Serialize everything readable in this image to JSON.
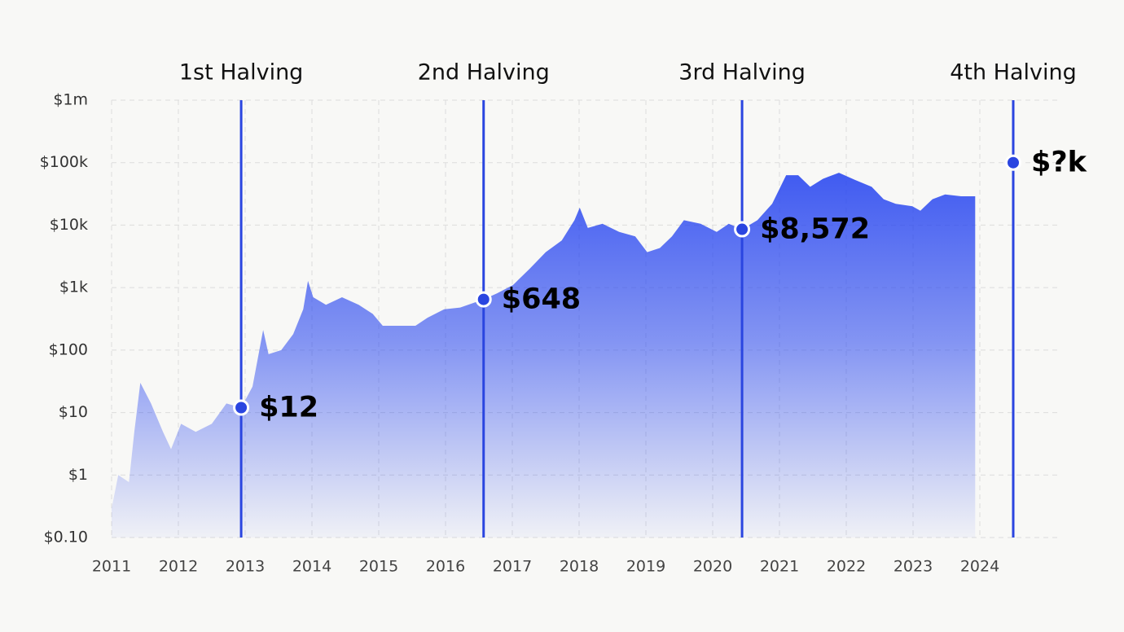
{
  "chart_data": {
    "type": "area",
    "color": "#2342f0",
    "log_y": true,
    "grid": true,
    "x": [
      2011.0,
      2011.1,
      2011.26,
      2011.34,
      2011.43,
      2011.59,
      2011.77,
      2011.89,
      2012.04,
      2012.26,
      2012.5,
      2012.72,
      2012.94,
      2013.11,
      2013.27,
      2013.35,
      2013.54,
      2013.72,
      2013.87,
      2013.94,
      2014.02,
      2014.21,
      2014.45,
      2014.7,
      2014.91,
      2015.06,
      2015.3,
      2015.55,
      2015.73,
      2015.98,
      2016.22,
      2016.57,
      2016.77,
      2017.01,
      2017.26,
      2017.5,
      2017.74,
      2017.93,
      2018.01,
      2018.13,
      2018.35,
      2018.6,
      2018.84,
      2019.02,
      2019.21,
      2019.39,
      2019.57,
      2019.82,
      2020.06,
      2020.24,
      2020.44,
      2020.67,
      2020.89,
      2021.1,
      2021.28,
      2021.46,
      2021.65,
      2021.89,
      2022.13,
      2022.38,
      2022.56,
      2022.74,
      2022.99,
      2023.11,
      2023.29,
      2023.48,
      2023.72,
      2023.93
    ],
    "values": [
      0.29,
      1.0,
      0.77,
      4.9,
      30,
      14,
      4.9,
      2.6,
      6.6,
      4.9,
      6.6,
      14,
      12,
      26,
      210,
      86,
      100,
      180,
      450,
      1280,
      700,
      530,
      700,
      530,
      380,
      245,
      245,
      245,
      330,
      450,
      480,
      648,
      810,
      1100,
      2000,
      3700,
      5700,
      12000,
      19000,
      9000,
      10500,
      7800,
      6600,
      3700,
      4300,
      6600,
      12000,
      10500,
      7800,
      10500,
      8572,
      12000,
      22000,
      63000,
      63000,
      41000,
      55000,
      69000,
      53000,
      41000,
      26000,
      22000,
      20000,
      17000,
      26000,
      31000,
      29000,
      29000
    ],
    "xlim": [
      2011,
      2025.2
    ],
    "xticks": [
      2011,
      2012,
      2013,
      2014,
      2015,
      2016,
      2017,
      2018,
      2019,
      2020,
      2021,
      2022,
      2023,
      2024
    ],
    "ylim": [
      0.1,
      1000000
    ],
    "yticks": [
      {
        "value": 0.1,
        "label": "$0.10"
      },
      {
        "value": 1,
        "label": "$1"
      },
      {
        "value": 10,
        "label": "$10"
      },
      {
        "value": 100,
        "label": "$100"
      },
      {
        "value": 1000,
        "label": "$1k"
      },
      {
        "value": 10000,
        "label": "$10k"
      },
      {
        "value": 100000,
        "label": "$100k"
      },
      {
        "value": 1000000,
        "label": "$1m"
      }
    ],
    "halvings": {
      "names": [
        "1st Halving",
        "2nd Halving",
        "3rd Halving",
        "4th Halving"
      ],
      "x": [
        2012.94,
        2016.57,
        2020.44,
        2024.5
      ],
      "values": [
        12,
        648,
        8572,
        100000
      ],
      "value_labels": [
        "$12",
        "$648",
        "$8,572",
        "$?k"
      ],
      "color": "#2a45e0"
    }
  }
}
